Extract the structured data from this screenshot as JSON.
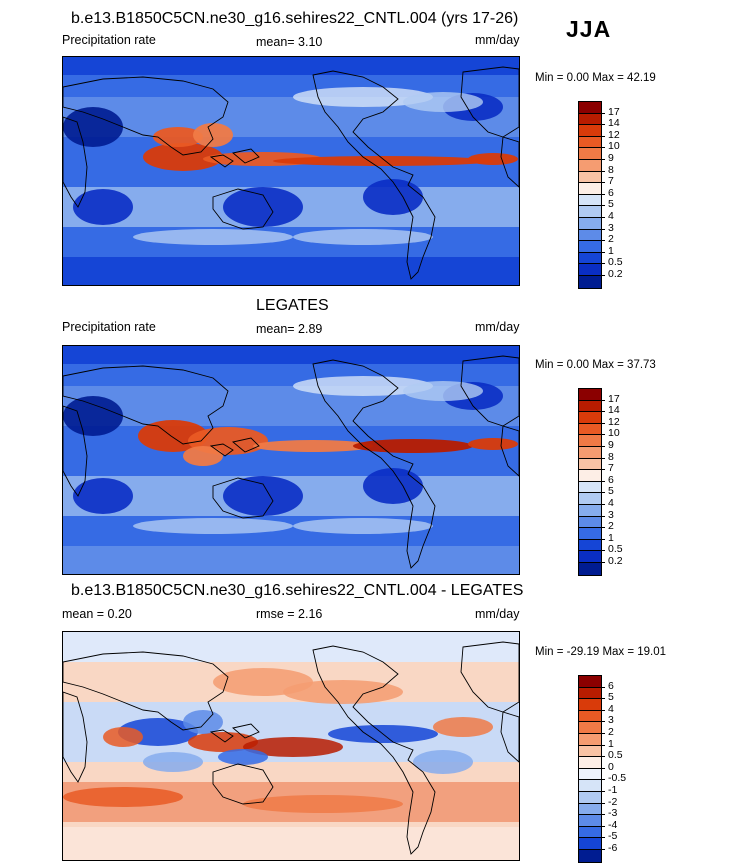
{
  "season": "JJA",
  "panels": [
    {
      "id": "model",
      "title": "b.e13.B1850C5CN.ne30_g16.sehires22_CNTL.004 (yrs 17-26)",
      "left_label": "Precipitation rate",
      "mid_label": "mean=   3.10",
      "right_label": "mm/day",
      "minmax": "Min =   0.00 Max =  42.19",
      "levels": [
        "17",
        "14",
        "12",
        "10",
        "9",
        "8",
        "7",
        "6",
        "5",
        "4",
        "3",
        "2",
        "1",
        "0.5",
        "0.2"
      ],
      "colors": [
        "#8b0000",
        "#b81c00",
        "#d93b0a",
        "#e95a24",
        "#f07a46",
        "#f59c71",
        "#f9c3a5",
        "#fdeee6",
        "#d6e4f8",
        "#b0caf2",
        "#86aced",
        "#5d8be8",
        "#366be4",
        "#1545d6",
        "#0a2ec4",
        "#001c91"
      ]
    },
    {
      "id": "obs",
      "title": "LEGATES",
      "left_label": "Precipitation rate",
      "mid_label": "mean=   2.89",
      "right_label": "mm/day",
      "minmax": "Min =   0.00 Max =  37.73",
      "levels": [
        "17",
        "14",
        "12",
        "10",
        "9",
        "8",
        "7",
        "6",
        "5",
        "4",
        "3",
        "2",
        "1",
        "0.5",
        "0.2"
      ],
      "colors": [
        "#8b0000",
        "#b81c00",
        "#d93b0a",
        "#e95a24",
        "#f07a46",
        "#f59c71",
        "#f9c3a5",
        "#fdeee6",
        "#d6e4f8",
        "#b0caf2",
        "#86aced",
        "#5d8be8",
        "#366be4",
        "#1545d6",
        "#0a2ec4",
        "#001c91"
      ]
    },
    {
      "id": "diff",
      "title": "b.e13.B1850C5CN.ne30_g16.sehires22_CNTL.004 - LEGATES",
      "left_label": "mean =   0.20",
      "mid_label": "rmse =   2.16",
      "right_label": "mm/day",
      "minmax": "Min = -29.19 Max =  19.01",
      "levels": [
        "6",
        "5",
        "4",
        "3",
        "2",
        "1",
        "0.5",
        "0",
        "-0.5",
        "-1",
        "-2",
        "-3",
        "-4",
        "-5",
        "-6"
      ],
      "colors": [
        "#8b0000",
        "#b81c00",
        "#d93b0a",
        "#e95a24",
        "#f07a46",
        "#f59c71",
        "#f9c3a5",
        "#fdeee6",
        "#eef3fc",
        "#d6e4f8",
        "#b0caf2",
        "#86aced",
        "#5d8be8",
        "#366be4",
        "#1545d6",
        "#001c91"
      ]
    }
  ]
}
